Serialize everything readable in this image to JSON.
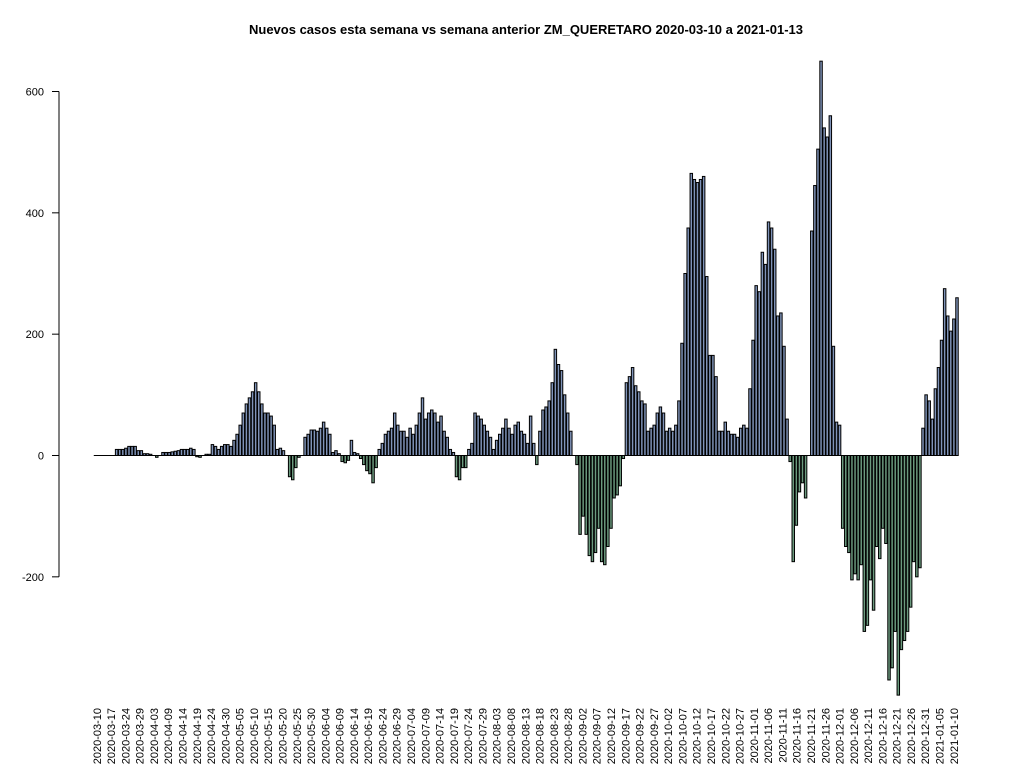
{
  "chart_data": {
    "type": "bar",
    "title": "Nuevos casos esta semana vs semana anterior ZM_QUERETARO 2020-03-10 a 2021-01-13",
    "xlabel": "",
    "ylabel": "",
    "start_date": "2020-03-10",
    "end_date": "2021-01-13",
    "ylim": [
      -400,
      660
    ],
    "y_ticks": [
      -200,
      0,
      200,
      400,
      600
    ],
    "x_tick_labels": [
      "2020-03-10",
      "2020-03-17",
      "2020-03-24",
      "2020-03-29",
      "2020-04-03",
      "2020-04-09",
      "2020-04-14",
      "2020-04-19",
      "2020-04-24",
      "2020-04-30",
      "2020-05-05",
      "2020-05-10",
      "2020-05-15",
      "2020-05-20",
      "2020-05-25",
      "2020-05-30",
      "2020-06-04",
      "2020-06-09",
      "2020-06-14",
      "2020-06-19",
      "2020-06-24",
      "2020-06-29",
      "2020-07-04",
      "2020-07-09",
      "2020-07-14",
      "2020-07-19",
      "2020-07-24",
      "2020-07-29",
      "2020-08-03",
      "2020-08-08",
      "2020-08-13",
      "2020-08-18",
      "2020-08-23",
      "2020-08-28",
      "2020-09-02",
      "2020-09-07",
      "2020-09-12",
      "2020-09-17",
      "2020-09-22",
      "2020-09-27",
      "2020-10-02",
      "2020-10-07",
      "2020-10-12",
      "2020-10-17",
      "2020-10-22",
      "2020-10-27",
      "2020-11-01",
      "2020-11-06",
      "2020-11-11",
      "2020-11-16",
      "2020-11-21",
      "2020-11-26",
      "2020-12-01",
      "2020-12-06",
      "2020-12-11",
      "2020-12-16",
      "2020-12-21",
      "2020-12-26",
      "2020-12-31",
      "2021-01-05",
      "2021-01-10"
    ],
    "colors": {
      "positive": "#7f93b8",
      "negative": "#6b9a7e",
      "outline": "#000000"
    },
    "values": [
      0,
      0,
      0,
      0,
      0,
      0,
      0,
      10,
      10,
      10,
      12,
      15,
      15,
      15,
      8,
      8,
      3,
      3,
      2,
      0,
      -3,
      0,
      5,
      5,
      5,
      6,
      7,
      8,
      10,
      10,
      10,
      12,
      10,
      -2,
      -3,
      0,
      2,
      2,
      18,
      15,
      10,
      15,
      18,
      18,
      15,
      25,
      35,
      50,
      70,
      85,
      95,
      105,
      120,
      105,
      85,
      70,
      70,
      65,
      50,
      10,
      12,
      8,
      0,
      -35,
      -40,
      -20,
      -3,
      0,
      30,
      35,
      42,
      42,
      40,
      45,
      55,
      45,
      35,
      5,
      8,
      3,
      -10,
      -12,
      -8,
      25,
      5,
      3,
      -5,
      -15,
      -25,
      -30,
      -45,
      -20,
      10,
      20,
      35,
      40,
      45,
      70,
      50,
      40,
      40,
      30,
      45,
      35,
      50,
      70,
      95,
      60,
      70,
      75,
      70,
      55,
      65,
      40,
      30,
      10,
      5,
      -35,
      -40,
      -20,
      -20,
      10,
      20,
      70,
      65,
      60,
      50,
      40,
      30,
      10,
      25,
      35,
      45,
      60,
      45,
      35,
      50,
      55,
      40,
      35,
      20,
      65,
      20,
      -15,
      40,
      75,
      80,
      90,
      120,
      175,
      150,
      140,
      100,
      70,
      40,
      0,
      -15,
      -130,
      -100,
      -130,
      -165,
      -175,
      -160,
      -120,
      -175,
      -180,
      -150,
      -120,
      -70,
      -65,
      -50,
      -5,
      120,
      130,
      145,
      115,
      105,
      90,
      85,
      40,
      45,
      50,
      70,
      80,
      70,
      40,
      45,
      40,
      50,
      90,
      185,
      300,
      375,
      465,
      455,
      450,
      455,
      460,
      295,
      165,
      165,
      130,
      40,
      40,
      55,
      40,
      35,
      35,
      30,
      45,
      50,
      45,
      110,
      190,
      280,
      270,
      335,
      315,
      385,
      375,
      340,
      230,
      235,
      180,
      60,
      -10,
      -175,
      -115,
      -60,
      -45,
      -70,
      0,
      370,
      445,
      505,
      650,
      540,
      525,
      560,
      180,
      55,
      50,
      -120,
      -150,
      -160,
      -205,
      -195,
      -205,
      -180,
      -290,
      -280,
      -205,
      -255,
      -150,
      -170,
      -120,
      -145,
      -370,
      -350,
      -290,
      -395,
      -320,
      -305,
      -290,
      -250,
      -175,
      -200,
      -185,
      45,
      100,
      90,
      60,
      110,
      145,
      190,
      275,
      230,
      205,
      225,
      260
    ]
  }
}
